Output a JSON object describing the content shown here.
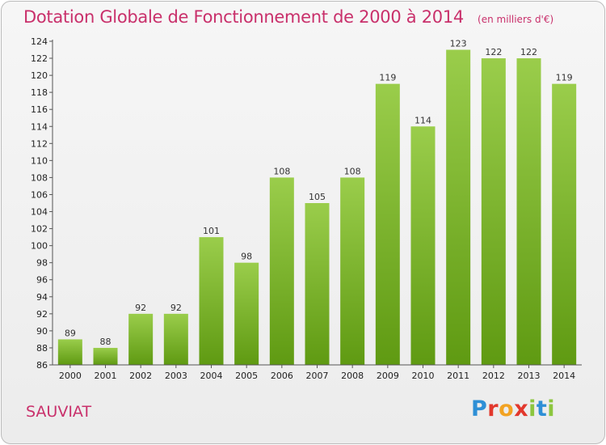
{
  "chart_data": {
    "type": "bar",
    "title": "Dotation Globale de Fonctionnement de 2000 à 2014",
    "unit": "(en milliers d'€)",
    "categories": [
      "2000",
      "2001",
      "2002",
      "2003",
      "2004",
      "2005",
      "2006",
      "2007",
      "2008",
      "2009",
      "2010",
      "2011",
      "2012",
      "2013",
      "2014"
    ],
    "values": [
      89,
      88,
      92,
      92,
      101,
      98,
      108,
      105,
      108,
      119,
      114,
      123,
      122,
      122,
      119
    ],
    "ylim": [
      86,
      124
    ],
    "ytick_step": 2,
    "xlabel": "",
    "ylabel": "",
    "grid": false,
    "colors": {
      "bar_top": "#9acd4b",
      "bar_bottom": "#5f9a12",
      "text_accent": "#c9306b"
    }
  },
  "commune": "SAUVIAT",
  "logo": {
    "letters": [
      {
        "char": "P",
        "color": "#2e8fd6"
      },
      {
        "char": "r",
        "color": "#e2382d"
      },
      {
        "char": "o",
        "color": "#f2a323"
      },
      {
        "char": "x",
        "color": "#e2382d"
      },
      {
        "char": "i",
        "color": "#8cc63f"
      },
      {
        "char": "t",
        "color": "#2e8fd6"
      },
      {
        "char": "i",
        "color": "#8cc63f"
      }
    ]
  }
}
